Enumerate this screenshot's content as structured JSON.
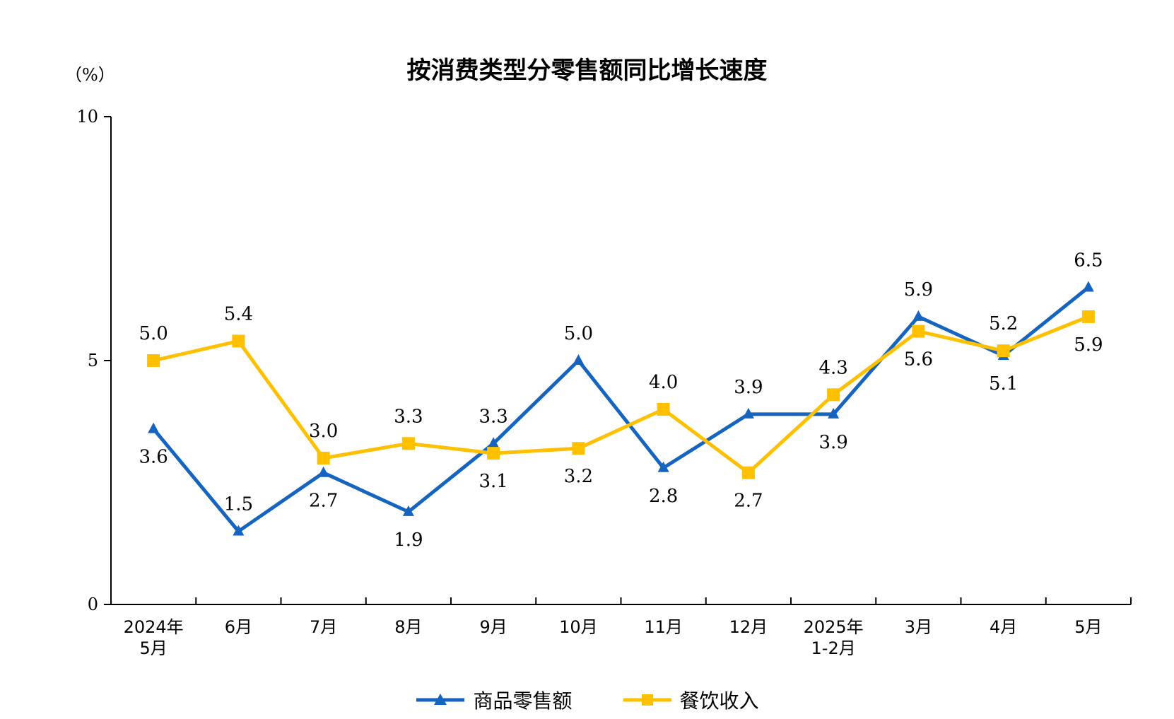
{
  "chart_data": {
    "type": "line",
    "title": "按消费类型分零售额同比增长速度",
    "ylabel": "（%）",
    "ylim": [
      0,
      10
    ],
    "yticks": [
      0,
      5,
      10
    ],
    "categories": [
      "2024年\n5月",
      "6月",
      "7月",
      "8月",
      "9月",
      "10月",
      "11月",
      "12月",
      "2025年\n1-2月",
      "3月",
      "4月",
      "5月"
    ],
    "series": [
      {
        "name": "商品零售额",
        "color": "#1565C0",
        "marker": "triangle",
        "values": [
          3.6,
          1.5,
          2.7,
          1.9,
          3.3,
          5.0,
          2.8,
          3.9,
          3.9,
          5.9,
          5.1,
          6.5
        ],
        "labels": [
          "3.6",
          "1.5",
          "2.7",
          "1.9",
          "3.3",
          "5.0",
          "2.8",
          "3.9",
          "3.9",
          "5.9",
          "5.1",
          "6.5"
        ],
        "label_pos": [
          "below",
          "above",
          "below",
          "below",
          "above",
          "above",
          "below",
          "above",
          "below",
          "above",
          "below",
          "above"
        ]
      },
      {
        "name": "餐饮收入",
        "color": "#FFC000",
        "marker": "square",
        "values": [
          5.0,
          5.4,
          3.0,
          3.3,
          3.1,
          3.2,
          4.0,
          2.7,
          4.3,
          5.6,
          5.2,
          5.9
        ],
        "labels": [
          "5.0",
          "5.4",
          "3.0",
          "3.3",
          "3.1",
          "3.2",
          "4.0",
          "2.7",
          "4.3",
          "5.6",
          "5.2",
          "5.9"
        ],
        "label_pos": [
          "above",
          "above",
          "above",
          "above",
          "below",
          "below",
          "above",
          "below",
          "above",
          "below",
          "above",
          "below"
        ]
      }
    ],
    "legend_position": "bottom"
  }
}
